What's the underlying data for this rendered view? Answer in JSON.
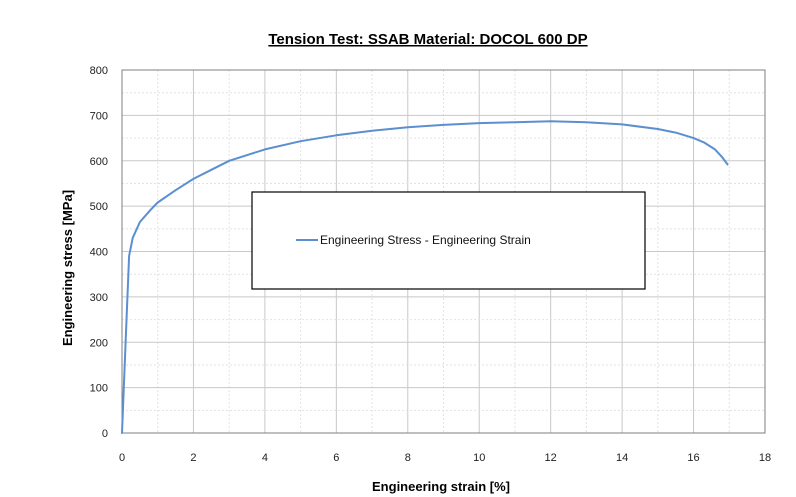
{
  "chart_data": {
    "type": "line",
    "title": "Tension Test: SSAB Material: DOCOL 600 DP",
    "xlabel": "Engineering strain [%]",
    "ylabel": "Engineering stress [MPa]",
    "xlim": [
      0,
      18
    ],
    "ylim": [
      0,
      800
    ],
    "xticks": [
      "0",
      "2",
      "4",
      "6",
      "8",
      "10",
      "12",
      "14",
      "16",
      "18"
    ],
    "yticks": [
      "0",
      "100",
      "200",
      "300",
      "400",
      "500",
      "600",
      "700",
      "800"
    ],
    "grid": true,
    "legend_placement": "center",
    "series": [
      {
        "name": "Engineering Stress - Engineering Strain",
        "color": "#5b8fd0",
        "x": [
          0,
          0.1,
          0.2,
          0.3,
          0.5,
          0.8,
          1.0,
          1.5,
          2.0,
          2.5,
          3.0,
          4.0,
          5.0,
          6.0,
          7.0,
          8.0,
          9.0,
          10.0,
          11.0,
          12.0,
          13.0,
          14.0,
          15.0,
          15.5,
          16.0,
          16.3,
          16.6,
          16.8,
          16.95
        ],
        "y": [
          0,
          200,
          390,
          430,
          465,
          492,
          508,
          535,
          560,
          580,
          600,
          625,
          643,
          656,
          666,
          674,
          679,
          683,
          685,
          687,
          685,
          680,
          670,
          662,
          650,
          640,
          625,
          608,
          592
        ]
      }
    ]
  }
}
